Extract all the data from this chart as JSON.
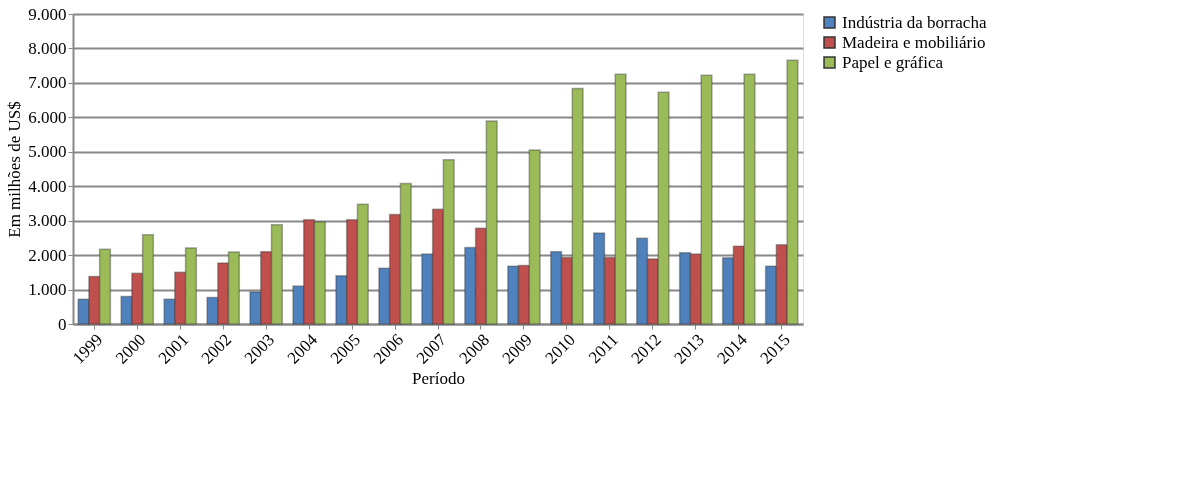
{
  "chart_data": {
    "type": "bar",
    "xlabel": "Período",
    "ylabel": "Em milhões de US$",
    "categories": [
      "1999",
      "2000",
      "2001",
      "2002",
      "2003",
      "2004",
      "2005",
      "2006",
      "2007",
      "2008",
      "2009",
      "2010",
      "2011",
      "2012",
      "2013",
      "2014",
      "2015"
    ],
    "series": [
      {
        "name": "Indústria da borracha",
        "color": "#4f81bd",
        "values": [
          720,
          800,
          720,
          770,
          930,
          1100,
          1400,
          1620,
          2030,
          2220,
          1680,
          2100,
          2640,
          2490,
          2070,
          1920,
          1680
        ]
      },
      {
        "name": "Madeira e mobiliário",
        "color": "#c0504d",
        "values": [
          1380,
          1470,
          1500,
          1770,
          2100,
          3030,
          3030,
          3180,
          3330,
          2780,
          1700,
          1930,
          1930,
          1890,
          2030,
          2260,
          2300
        ]
      },
      {
        "name": "Papel e gráfica",
        "color": "#9bbb59",
        "values": [
          2170,
          2590,
          2210,
          2090,
          2880,
          2960,
          3480,
          4080,
          4770,
          5890,
          5050,
          6840,
          7250,
          6730,
          7220,
          7250,
          7660
        ]
      }
    ],
    "ylim": [
      0,
      9000
    ],
    "yticks": [
      0,
      {
        "value": 1000,
        "label": "1.000"
      },
      {
        "value": 2000,
        "label": "2.000"
      },
      {
        "value": 3000,
        "label": "3.000"
      },
      {
        "value": 4000,
        "label": "4.000"
      },
      {
        "value": 5000,
        "label": "5.000"
      },
      {
        "value": 6000,
        "label": "6.000"
      },
      {
        "value": 7000,
        "label": "7.000"
      },
      {
        "value": 8000,
        "label": "8.000"
      },
      {
        "value": 9000,
        "label": "9.000"
      }
    ],
    "grid": "y",
    "legend": "right"
  }
}
